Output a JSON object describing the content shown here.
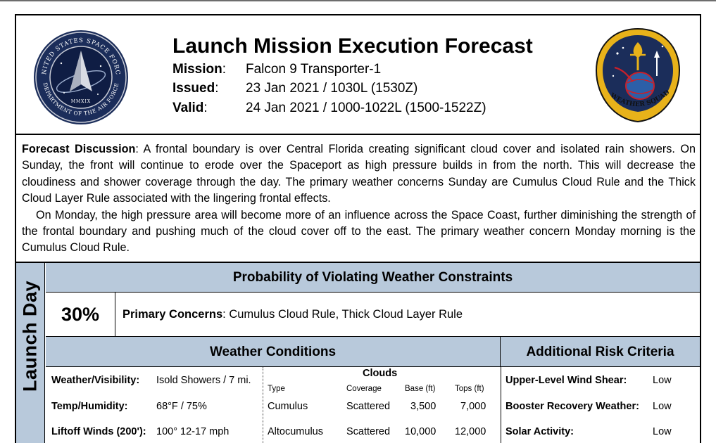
{
  "header": {
    "title": "Launch Mission Execution Forecast",
    "mission_label": "Mission",
    "mission_value": "Falcon 9 Transporter-1",
    "issued_label": "Issued",
    "issued_value": "23 Jan 2021 / 1030L (1530Z)",
    "valid_label": "Valid",
    "valid_value": "24 Jan 2021 / 1000-1022L (1500-1522Z)",
    "left_seal_text": "UNITED STATES SPACE FORCE · DEPARTMENT OF THE AIR FORCE",
    "left_seal_year": "MMXIX",
    "right_seal_text": "45TH WEATHER SQUADRON",
    "colors": {
      "seal_blue": "#1b2d5a",
      "seal_gold": "#e8b21a",
      "seal_red": "#c8202a"
    }
  },
  "discussion": {
    "label": "Forecast Discussion",
    "p1": "A frontal boundary is over Central Florida creating significant cloud cover and isolated rain showers. On Sunday, the front will continue to erode over the Spaceport as high pressure builds in from the north. This will decrease the cloudiness and shower coverage through the day. The primary weather concerns Sunday are Cumulus Cloud Rule and the Thick Cloud Layer Rule associated with the lingering frontal effects.",
    "p2": "On Monday, the high pressure area will become more of an influence across the Space Coast, further diminishing the strength of the frontal boundary and pushing much of the cloud cover off to the east. The primary weather concern Monday morning is the Cumulus Cloud Rule."
  },
  "launch_day": {
    "side_label": "Launch Day",
    "prob_title": "Probability of Violating Weather Constraints",
    "probability": "30%",
    "concerns_label": "Primary Concerns",
    "concerns_value": "Cumulus Cloud Rule, Thick Cloud Layer Rule",
    "conditions_title": "Weather Conditions",
    "risk_title": "Additional Risk Criteria",
    "band_color": "#b8c9db",
    "conditions": [
      {
        "label": "Weather/Visibility",
        "value": "Isold Showers / 7 mi."
      },
      {
        "label": "Temp/Humidity",
        "value": "68°F / 75%"
      },
      {
        "label": "Liftoff Winds (200')",
        "value": "100° 12-17 mph"
      }
    ],
    "clouds": {
      "title": "Clouds",
      "headers": [
        "Type",
        "Coverage",
        "Base (ft)",
        "Tops (ft)"
      ],
      "rows": [
        [
          "Cumulus",
          "Scattered",
          "3,500",
          "7,000"
        ],
        [
          "Altocumulus",
          "Scattered",
          "10,000",
          "12,000"
        ]
      ]
    },
    "risks": [
      {
        "label": "Upper-Level Wind Shear",
        "value": "Low"
      },
      {
        "label": "Booster Recovery Weather",
        "value": "Low"
      },
      {
        "label": "Solar Activity",
        "value": "Low"
      }
    ]
  }
}
